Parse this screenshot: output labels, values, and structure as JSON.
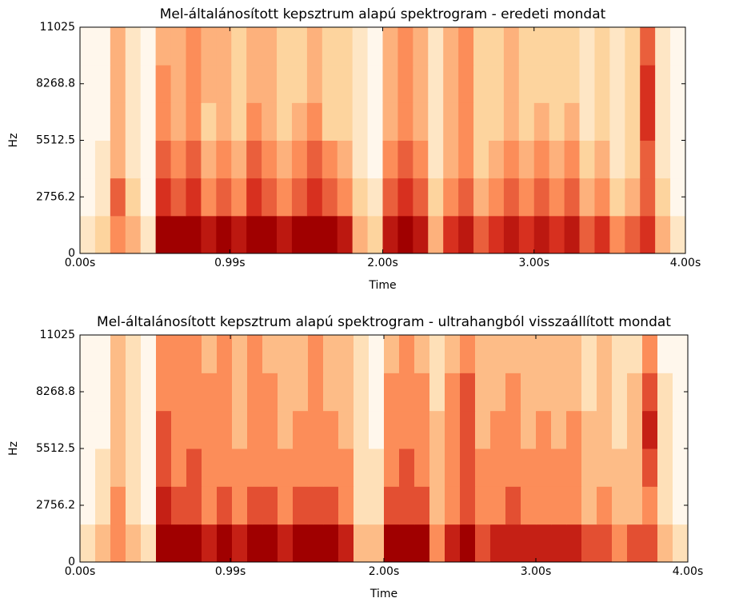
{
  "chart_data": [
    {
      "type": "heatmap",
      "title": "Mel-általánosított kepsztrum alapú spektrogram - eredeti mondat",
      "x_label": "Time",
      "y_label": "Hz",
      "xlim": [
        0,
        4.0
      ],
      "ylim": [
        0,
        11025
      ],
      "xticks": [
        {
          "value": 0,
          "label": "0.00s"
        },
        {
          "value": 0.99,
          "label": "0.99s"
        },
        {
          "value": 2.0,
          "label": "2.00s"
        },
        {
          "value": 3.0,
          "label": "3.00s"
        },
        {
          "value": 4.0,
          "label": "4.00s"
        }
      ],
      "yticks": [
        0,
        2756.2,
        5512.5,
        8268.8,
        11025
      ],
      "x": [
        0.05,
        0.15,
        0.25,
        0.35,
        0.45,
        0.55,
        0.65,
        0.75,
        0.85,
        0.95,
        1.05,
        1.15,
        1.25,
        1.35,
        1.45,
        1.55,
        1.65,
        1.75,
        1.85,
        1.95,
        2.05,
        2.15,
        2.25,
        2.35,
        2.45,
        2.55,
        2.65,
        2.75,
        2.85,
        2.95,
        3.05,
        3.15,
        3.25,
        3.35,
        3.45,
        3.55,
        3.65,
        3.75,
        3.85,
        3.95
      ],
      "y": [
        918.75,
        2756.25,
        4593.75,
        6431.25,
        8268.75,
        10106.25
      ],
      "z": [
        [
          2,
          3,
          5,
          4,
          2,
          9,
          9,
          9,
          8,
          9,
          8,
          9,
          9,
          8,
          9,
          9,
          9,
          8,
          4,
          3,
          8,
          9,
          8,
          4,
          7,
          8,
          6,
          7,
          8,
          7,
          8,
          7,
          8,
          6,
          7,
          5,
          6,
          7,
          4,
          2
        ],
        [
          1,
          2,
          6,
          3,
          1,
          7,
          6,
          7,
          5,
          6,
          5,
          7,
          6,
          5,
          6,
          7,
          6,
          5,
          3,
          2,
          6,
          7,
          6,
          3,
          5,
          6,
          4,
          5,
          6,
          5,
          6,
          5,
          6,
          4,
          5,
          3,
          4,
          6,
          3,
          1
        ],
        [
          1,
          2,
          4,
          2,
          1,
          6,
          5,
          6,
          4,
          5,
          4,
          6,
          5,
          4,
          5,
          6,
          5,
          4,
          2,
          1,
          5,
          6,
          5,
          2,
          4,
          5,
          3,
          4,
          5,
          4,
          5,
          4,
          5,
          3,
          4,
          2,
          3,
          6,
          2,
          1
        ],
        [
          1,
          1,
          4,
          2,
          1,
          5,
          4,
          5,
          3,
          4,
          3,
          5,
          4,
          3,
          4,
          5,
          3,
          3,
          2,
          1,
          4,
          5,
          4,
          2,
          4,
          5,
          3,
          3,
          4,
          3,
          4,
          3,
          4,
          2,
          3,
          2,
          3,
          7,
          2,
          1
        ],
        [
          1,
          1,
          4,
          2,
          1,
          5,
          4,
          5,
          4,
          4,
          3,
          4,
          4,
          3,
          3,
          4,
          3,
          3,
          2,
          1,
          4,
          5,
          4,
          2,
          4,
          5,
          3,
          3,
          4,
          3,
          3,
          3,
          3,
          2,
          3,
          2,
          3,
          7,
          2,
          1
        ],
        [
          1,
          1,
          4,
          2,
          1,
          4,
          4,
          5,
          4,
          4,
          3,
          4,
          4,
          3,
          3,
          4,
          3,
          3,
          2,
          1,
          4,
          5,
          4,
          2,
          4,
          5,
          3,
          3,
          4,
          3,
          3,
          3,
          3,
          2,
          3,
          2,
          3,
          6,
          2,
          1
        ]
      ]
    },
    {
      "type": "heatmap",
      "title": "Mel-általánosított kepsztrum alapú spektrogram - ultrahangból visszaállított mondat",
      "x_label": "Time",
      "y_label": "Hz",
      "xlim": [
        0,
        4.0
      ],
      "ylim": [
        0,
        11025
      ],
      "xticks": [
        {
          "value": 0,
          "label": "0.00s"
        },
        {
          "value": 0.99,
          "label": "0.99s"
        },
        {
          "value": 2.0,
          "label": "2.00s"
        },
        {
          "value": 3.0,
          "label": "3.00s"
        },
        {
          "value": 4.0,
          "label": "4.00s"
        }
      ],
      "yticks": [
        0,
        2756.2,
        5512.5,
        8268.8,
        11025
      ],
      "x": [
        0.05,
        0.15,
        0.25,
        0.35,
        0.45,
        0.55,
        0.65,
        0.75,
        0.85,
        0.95,
        1.05,
        1.15,
        1.25,
        1.35,
        1.45,
        1.55,
        1.65,
        1.75,
        1.85,
        1.95,
        2.05,
        2.15,
        2.25,
        2.35,
        2.45,
        2.55,
        2.65,
        2.75,
        2.85,
        2.95,
        3.05,
        3.15,
        3.25,
        3.35,
        3.45,
        3.55,
        3.65,
        3.75,
        3.85,
        3.95
      ],
      "y": [
        918.75,
        2756.25,
        4593.75,
        6431.25,
        8268.75,
        10106.25
      ],
      "z": [
        [
          2,
          3,
          4,
          3,
          2,
          7,
          7,
          7,
          6,
          7,
          6,
          7,
          7,
          6,
          7,
          7,
          7,
          6,
          3,
          3,
          7,
          7,
          7,
          4,
          6,
          7,
          5,
          6,
          6,
          6,
          6,
          6,
          6,
          5,
          5,
          4,
          5,
          5,
          3,
          2
        ],
        [
          1,
          2,
          4,
          2,
          1,
          6,
          5,
          5,
          4,
          5,
          4,
          5,
          5,
          4,
          5,
          5,
          5,
          4,
          2,
          2,
          5,
          5,
          5,
          3,
          4,
          5,
          4,
          4,
          5,
          4,
          4,
          4,
          4,
          3,
          4,
          3,
          3,
          4,
          2,
          1
        ],
        [
          1,
          2,
          3,
          2,
          1,
          5,
          4,
          5,
          4,
          4,
          4,
          4,
          4,
          4,
          4,
          4,
          4,
          4,
          2,
          2,
          4,
          5,
          4,
          3,
          4,
          5,
          4,
          4,
          4,
          4,
          4,
          4,
          4,
          3,
          3,
          3,
          3,
          5,
          2,
          1
        ],
        [
          1,
          1,
          3,
          2,
          1,
          5,
          4,
          4,
          4,
          4,
          3,
          4,
          4,
          3,
          4,
          4,
          4,
          3,
          2,
          1,
          4,
          4,
          4,
          3,
          4,
          5,
          3,
          4,
          4,
          3,
          4,
          3,
          4,
          3,
          3,
          2,
          3,
          6,
          2,
          1
        ],
        [
          1,
          1,
          3,
          2,
          1,
          4,
          4,
          4,
          4,
          4,
          3,
          4,
          4,
          3,
          3,
          4,
          3,
          3,
          2,
          1,
          4,
          4,
          4,
          2,
          4,
          5,
          3,
          3,
          4,
          3,
          3,
          3,
          3,
          2,
          3,
          2,
          3,
          5,
          2,
          1
        ],
        [
          1,
          1,
          3,
          2,
          1,
          4,
          4,
          4,
          3,
          4,
          3,
          4,
          3,
          3,
          3,
          4,
          3,
          3,
          2,
          1,
          3,
          4,
          3,
          2,
          3,
          4,
          3,
          3,
          3,
          3,
          3,
          3,
          3,
          2,
          3,
          2,
          2,
          4,
          1,
          1
        ]
      ]
    }
  ]
}
